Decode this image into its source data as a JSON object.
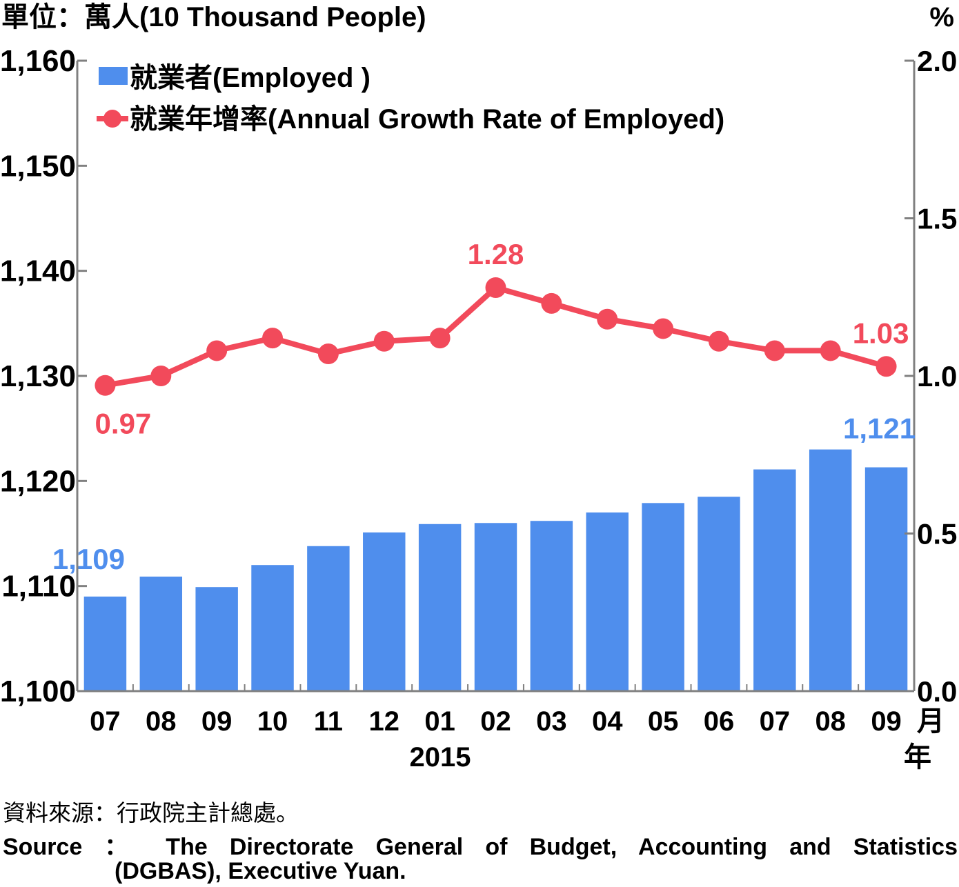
{
  "chart_data": {
    "type": "bar+line",
    "left_axis": {
      "unit_label": "單位：萬人(10 Thousand People)",
      "ylim": [
        1100,
        1160
      ],
      "ticks": [
        "1,100",
        "1,110",
        "1,120",
        "1,130",
        "1,140",
        "1,150",
        "1,160"
      ]
    },
    "right_axis": {
      "unit_label": "%",
      "ylim": [
        0.0,
        2.0
      ],
      "ticks": [
        "0.0",
        "0.5",
        "1.0",
        "1.5",
        "2.0"
      ]
    },
    "categories": [
      "07",
      "08",
      "09",
      "10",
      "11",
      "12",
      "01",
      "02",
      "03",
      "04",
      "05",
      "06",
      "07",
      "08",
      "09"
    ],
    "x_unit_month": "月",
    "x_unit_year": "年",
    "year_label": "2015",
    "legend_position": "top-left",
    "series": [
      {
        "name": "就業者(Employed )",
        "kind": "bar",
        "axis": "left",
        "color": "#4f8eed",
        "values": [
          1109.0,
          1110.9,
          1109.9,
          1112.0,
          1113.8,
          1115.1,
          1115.9,
          1116.0,
          1116.2,
          1117.0,
          1117.9,
          1118.5,
          1121.1,
          1123.0,
          1121.3
        ],
        "labels": [
          {
            "index": 0,
            "text": "1,109"
          },
          {
            "index": 14,
            "text": "1,121"
          }
        ]
      },
      {
        "name": "就業年增率(Annual Growth Rate of Employed)",
        "kind": "line",
        "axis": "right",
        "color": "#f24a5b",
        "values": [
          0.97,
          1.0,
          1.08,
          1.12,
          1.07,
          1.11,
          1.12,
          1.28,
          1.23,
          1.18,
          1.15,
          1.11,
          1.08,
          1.08,
          1.03
        ],
        "labels": [
          {
            "index": 0,
            "text": "0.97"
          },
          {
            "index": 7,
            "text": "1.28"
          },
          {
            "index": 14,
            "text": "1.03"
          }
        ]
      }
    ]
  },
  "source": {
    "cn": "資料來源：行政院主計總處。",
    "en_line1": "Source ： The Directorate General of Budget, Accounting and Statistics",
    "en_line2": "(DGBAS), Executive Yuan."
  }
}
